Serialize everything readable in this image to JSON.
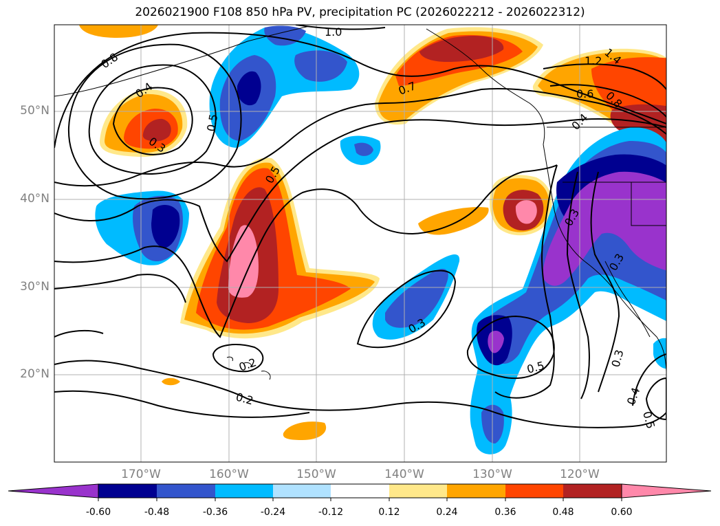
{
  "title": "2026021900 F108 850 hPa PV, precipitation PC (2026022212 - 2026022312)",
  "lat_labels": [
    "50°N",
    "40°N",
    "30°N",
    "20°N"
  ],
  "lon_labels": [
    "170°W",
    "160°W",
    "150°W",
    "140°W",
    "130°W",
    "120°W"
  ],
  "colorbar": {
    "ticks": [
      "-0.60",
      "-0.48",
      "-0.36",
      "-0.24",
      "-0.12",
      "0.12",
      "0.24",
      "0.36",
      "0.48",
      "0.60"
    ],
    "colors": [
      "#9933cc",
      "#000090",
      "#3355cc",
      "#00bbff",
      "#b0e2ff",
      "#ffffff",
      "#ffe88a",
      "#ffa500",
      "#ff4500",
      "#b22222",
      "#ff88aa"
    ]
  },
  "contour_labels": [
    "0.8",
    "0.4",
    "0.3",
    "0.5",
    "1.0",
    "0.7",
    "1.2",
    "1.4",
    "0.6",
    "0.8",
    "0.4",
    "0.5",
    "0.3",
    "0.3",
    "0.5",
    "0.2",
    "0.2",
    "0.3",
    "0.4",
    "0.5",
    "0.3"
  ],
  "colors": {
    "neg_strong": "#9933cc",
    "neg_navy": "#000090",
    "neg_blue": "#3355cc",
    "neg_cyan": "#00bbff",
    "neg_light": "#b0e2ff",
    "pos_yellow": "#ffe88a",
    "pos_orange": "#ffa500",
    "pos_red": "#ff4500",
    "pos_dark": "#b22222",
    "pos_pink": "#ff88aa",
    "grid": "#b0b0b0",
    "contour": "#000000"
  }
}
